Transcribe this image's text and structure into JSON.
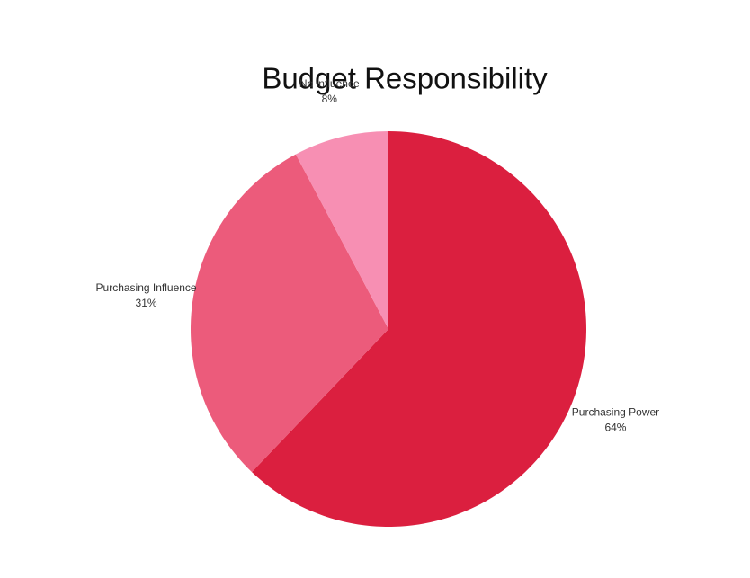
{
  "chart_data": {
    "type": "pie",
    "title": "Budget Responsibility",
    "categories": [
      "Purchasing Power",
      "Purchasing Influence",
      "No influence"
    ],
    "values": [
      64,
      31,
      8
    ],
    "value_labels": [
      "64%",
      "31%",
      "8%"
    ],
    "colors": [
      "#db1f3f",
      "#ec5b7b",
      "#f78fb3"
    ]
  }
}
